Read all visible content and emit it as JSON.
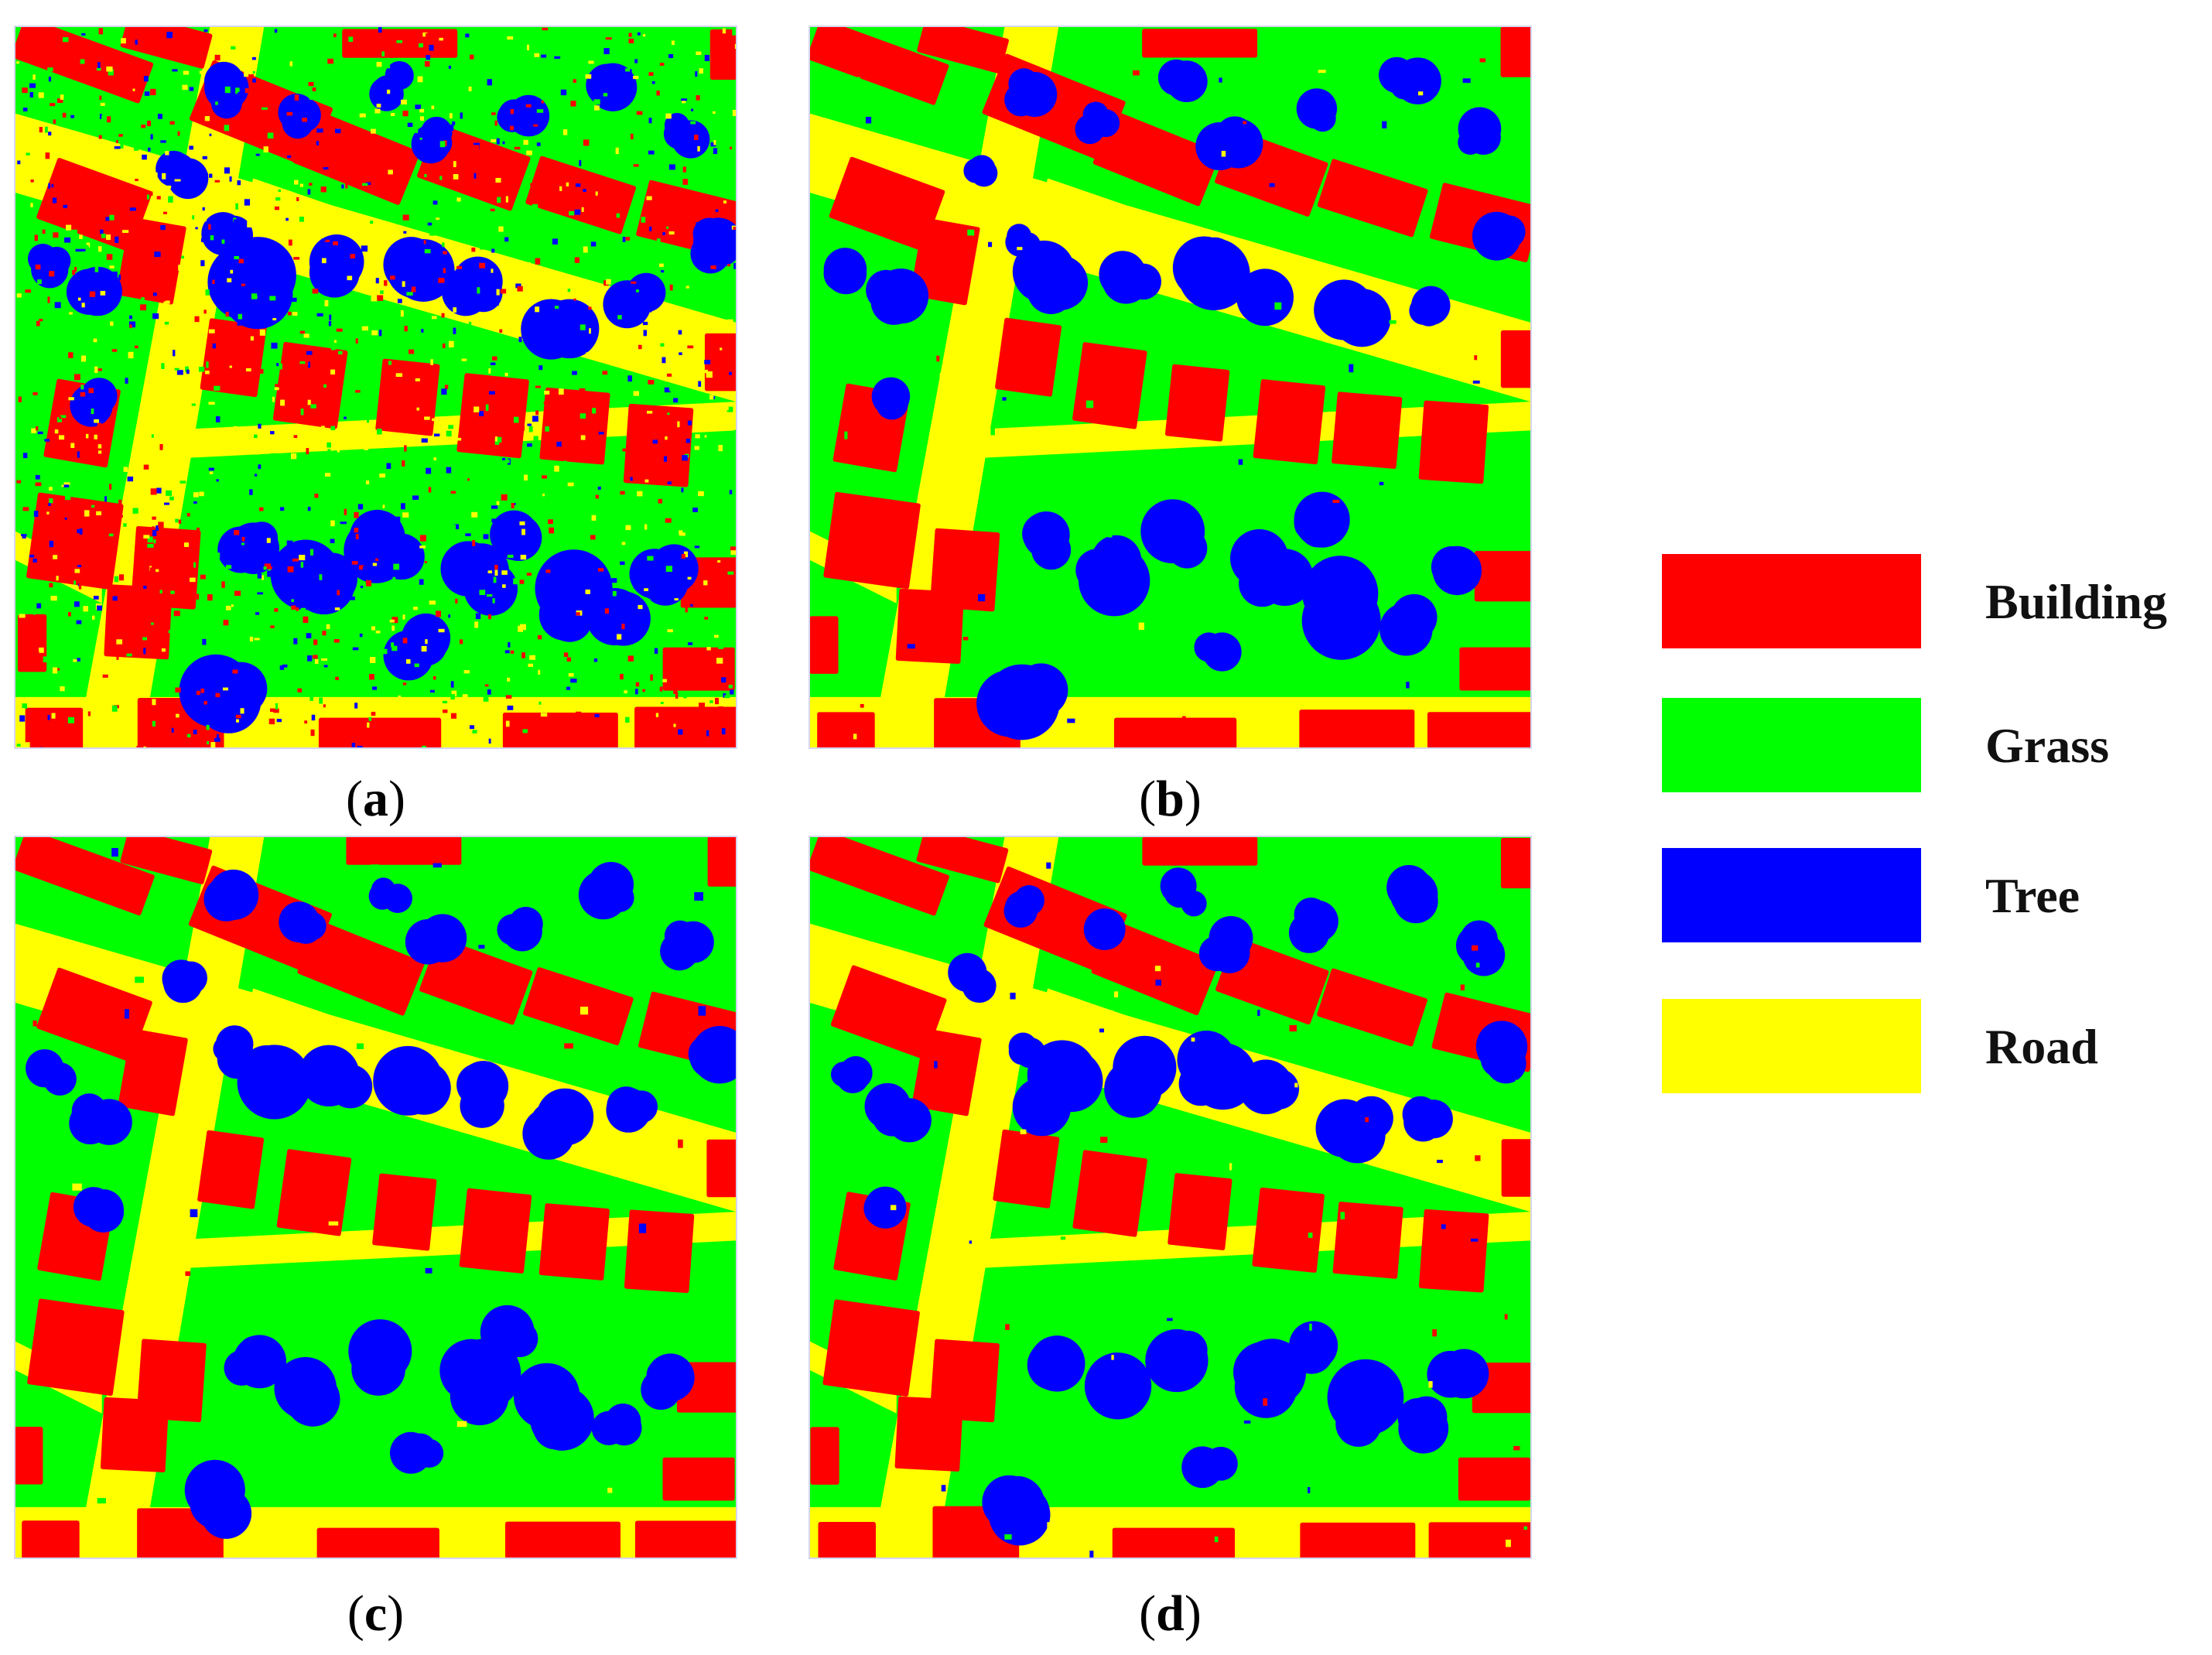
{
  "panels": [
    {
      "id": "a",
      "caption_letter": "a"
    },
    {
      "id": "b",
      "caption_letter": "b"
    },
    {
      "id": "c",
      "caption_letter": "c"
    },
    {
      "id": "d",
      "caption_letter": "d"
    }
  ],
  "legend": [
    {
      "label": "Building",
      "color": "#ff0000"
    },
    {
      "label": "Grass",
      "color": "#00ff00"
    },
    {
      "label": "Tree",
      "color": "#0000ff"
    },
    {
      "label": "Road",
      "color": "#ffff00"
    }
  ],
  "colors": {
    "building": "#ff0000",
    "grass": "#00ff00",
    "tree": "#0000ff",
    "road": "#ffff00"
  }
}
